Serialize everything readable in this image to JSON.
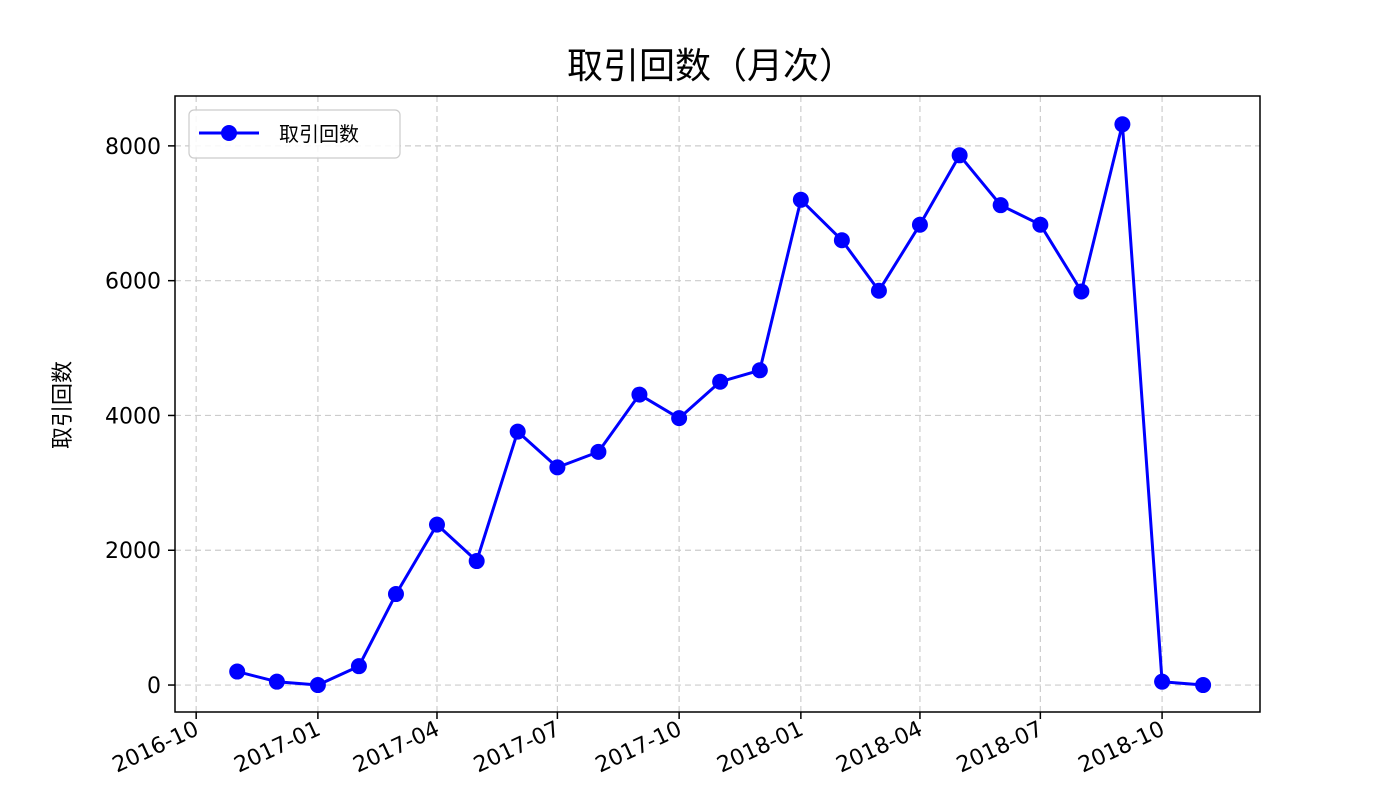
{
  "chart_data": {
    "type": "line",
    "title": "取引回数（月次）",
    "xlabel": "",
    "ylabel": "取引回数",
    "x": [
      "2016-11-01",
      "2016-12-01",
      "2017-01-01",
      "2017-02-01",
      "2017-03-01",
      "2017-04-01",
      "2017-05-01",
      "2017-06-01",
      "2017-07-01",
      "2017-08-01",
      "2017-09-01",
      "2017-10-01",
      "2017-11-01",
      "2017-12-01",
      "2018-01-01",
      "2018-02-01",
      "2018-03-01",
      "2018-04-01",
      "2018-05-01",
      "2018-06-01",
      "2018-07-01",
      "2018-08-01",
      "2018-09-01",
      "2018-10-01",
      "2018-11-01"
    ],
    "series": [
      {
        "name": "取引回数",
        "color": "#0000ff",
        "values": [
          200,
          50,
          0,
          280,
          1350,
          2380,
          1840,
          3760,
          3230,
          3460,
          4310,
          3960,
          4500,
          4670,
          7200,
          6600,
          5850,
          6830,
          7860,
          7120,
          6830,
          5840,
          8320,
          50,
          0
        ]
      }
    ],
    "xlim": [
      "2016-09-15",
      "2018-12-14"
    ],
    "ylim": [
      -400,
      8740
    ],
    "x_ticks": [
      "2016-10-01",
      "2017-01-01",
      "2017-04-01",
      "2017-07-01",
      "2017-10-01",
      "2018-01-01",
      "2018-04-01",
      "2018-07-01",
      "2018-10-01"
    ],
    "x_tick_labels": [
      "2016-10",
      "2017-01",
      "2017-04",
      "2017-07",
      "2017-10",
      "2018-01",
      "2018-04",
      "2018-07",
      "2018-10"
    ],
    "y_ticks": [
      0,
      2000,
      4000,
      6000,
      8000
    ],
    "y_tick_labels": [
      "0",
      "2000",
      "4000",
      "6000",
      "8000"
    ],
    "grid": true,
    "legend_position": "top-left"
  }
}
